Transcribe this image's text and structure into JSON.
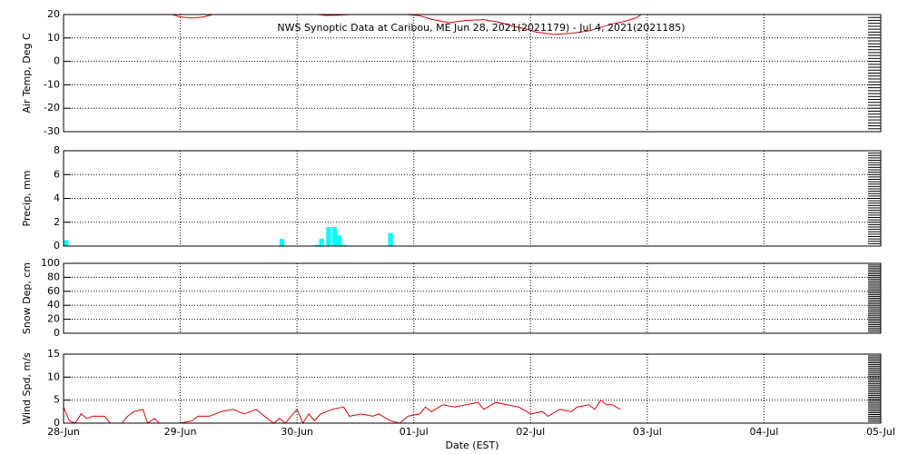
{
  "chart_data": [
    {
      "type": "line",
      "title": "NWS Synoptic Data at Caribou, ME   Jun 28, 2021(2021179) - Jul  4, 2021(2021185)",
      "y_label": "Air Temp, Deg C",
      "ylim": [
        -30,
        20
      ],
      "yticks": [
        -30,
        -20,
        -10,
        0,
        10,
        20
      ],
      "xlim": [
        0,
        7
      ],
      "xticks": [
        0,
        1,
        2,
        3,
        4,
        5,
        6,
        7
      ],
      "grid": true,
      "series": [
        {
          "color": "#e00000",
          "x": [
            0.93,
            1.0,
            1.1,
            1.2,
            1.28,
            1.7,
            2.18,
            2.25,
            2.35,
            2.45,
            2.7,
            2.94,
            3.05,
            3.15,
            3.3,
            3.45,
            3.6,
            3.75,
            3.85,
            3.95,
            4.05,
            4.2,
            4.35,
            4.5,
            4.6,
            4.7,
            4.8,
            4.9,
            4.95
          ],
          "values": [
            20,
            19,
            18.5,
            19,
            20,
            null,
            20,
            19.6,
            19.7,
            20,
            null,
            20,
            19.5,
            18,
            16.5,
            17.5,
            17.8,
            16.5,
            15,
            14,
            12.5,
            11.5,
            12,
            13,
            14.5,
            16,
            17,
            18.5,
            20
          ]
        }
      ]
    },
    {
      "type": "bar",
      "y_label": "Precip, mm",
      "ylim": [
        0,
        8
      ],
      "yticks": [
        0,
        2,
        4,
        6,
        8
      ],
      "xlim": [
        0,
        7
      ],
      "xticks": [
        0,
        1,
        2,
        3,
        4,
        5,
        6,
        7
      ],
      "grid": true,
      "series": [
        {
          "color": "#00ffff",
          "x": [
            0.0,
            1.85,
            2.15,
            2.19,
            2.25,
            2.3,
            2.34,
            2.38,
            2.78
          ],
          "values": [
            0.5,
            0.6,
            0.1,
            0.6,
            1.6,
            1.6,
            0.9,
            0.1,
            1.1
          ]
        }
      ]
    },
    {
      "type": "line",
      "y_label": "Snow Dep, cm",
      "ylim": [
        0,
        100
      ],
      "yticks": [
        0,
        20,
        40,
        60,
        80,
        100
      ],
      "xlim": [
        0,
        7
      ],
      "xticks": [
        0,
        1,
        2,
        3,
        4,
        5,
        6,
        7
      ],
      "grid": true,
      "series": []
    },
    {
      "type": "line",
      "y_label": "Wind Spd, m/s",
      "x_label": "Date (EST)",
      "ylim": [
        0,
        15
      ],
      "yticks": [
        0,
        5,
        10,
        15
      ],
      "xlim": [
        0,
        7
      ],
      "grid": true,
      "xticks": [
        {
          "value": 0,
          "label": "28-Jun"
        },
        {
          "value": 1,
          "label": "29-Jun"
        },
        {
          "value": 2,
          "label": "30-Jun"
        },
        {
          "value": 3,
          "label": "01-Jul"
        },
        {
          "value": 4,
          "label": "02-Jul"
        },
        {
          "value": 5,
          "label": "03-Jul"
        },
        {
          "value": 6,
          "label": "04-Jul"
        },
        {
          "value": 7,
          "label": "05-Jul"
        }
      ],
      "series": [
        {
          "color": "#e00000",
          "x": [
            0.0,
            0.05,
            0.1,
            0.15,
            0.2,
            0.25,
            0.3,
            0.35,
            0.4,
            0.45,
            0.5,
            0.55,
            0.6,
            0.68,
            0.72,
            0.78,
            0.82,
            0.9,
            1.0,
            1.1,
            1.15,
            1.25,
            1.35,
            1.45,
            1.55,
            1.65,
            1.72,
            1.8,
            1.85,
            1.9,
            1.95,
            2.0,
            2.05,
            2.1,
            2.15,
            2.2,
            2.3,
            2.4,
            2.45,
            2.55,
            2.65,
            2.7,
            2.8,
            2.88,
            2.95,
            3.05,
            3.1,
            3.15,
            3.25,
            3.35,
            3.45,
            3.55,
            3.6,
            3.7,
            3.8,
            3.9,
            4.0,
            4.1,
            4.15,
            4.25,
            4.35,
            4.4,
            4.5,
            4.55,
            4.6,
            4.65,
            4.7,
            4.77
          ],
          "values": [
            3.5,
            0.5,
            0,
            2,
            1,
            1.5,
            1.5,
            1.5,
            0,
            0,
            0,
            1.5,
            2.5,
            3,
            0,
            1,
            0,
            0,
            0,
            0.5,
            1.5,
            1.5,
            2.5,
            3,
            2,
            3,
            1.5,
            0,
            1,
            0,
            1.5,
            3,
            0,
            2,
            0.5,
            2,
            3,
            3.5,
            1.5,
            2,
            1.5,
            2,
            0.5,
            0,
            1.5,
            2,
            3.5,
            2.5,
            4,
            3.5,
            4,
            4.5,
            3,
            4.5,
            4,
            3.5,
            2,
            2.5,
            1.5,
            3,
            2.5,
            3.5,
            4,
            3,
            5,
            4,
            4,
            3
          ]
        }
      ]
    }
  ]
}
